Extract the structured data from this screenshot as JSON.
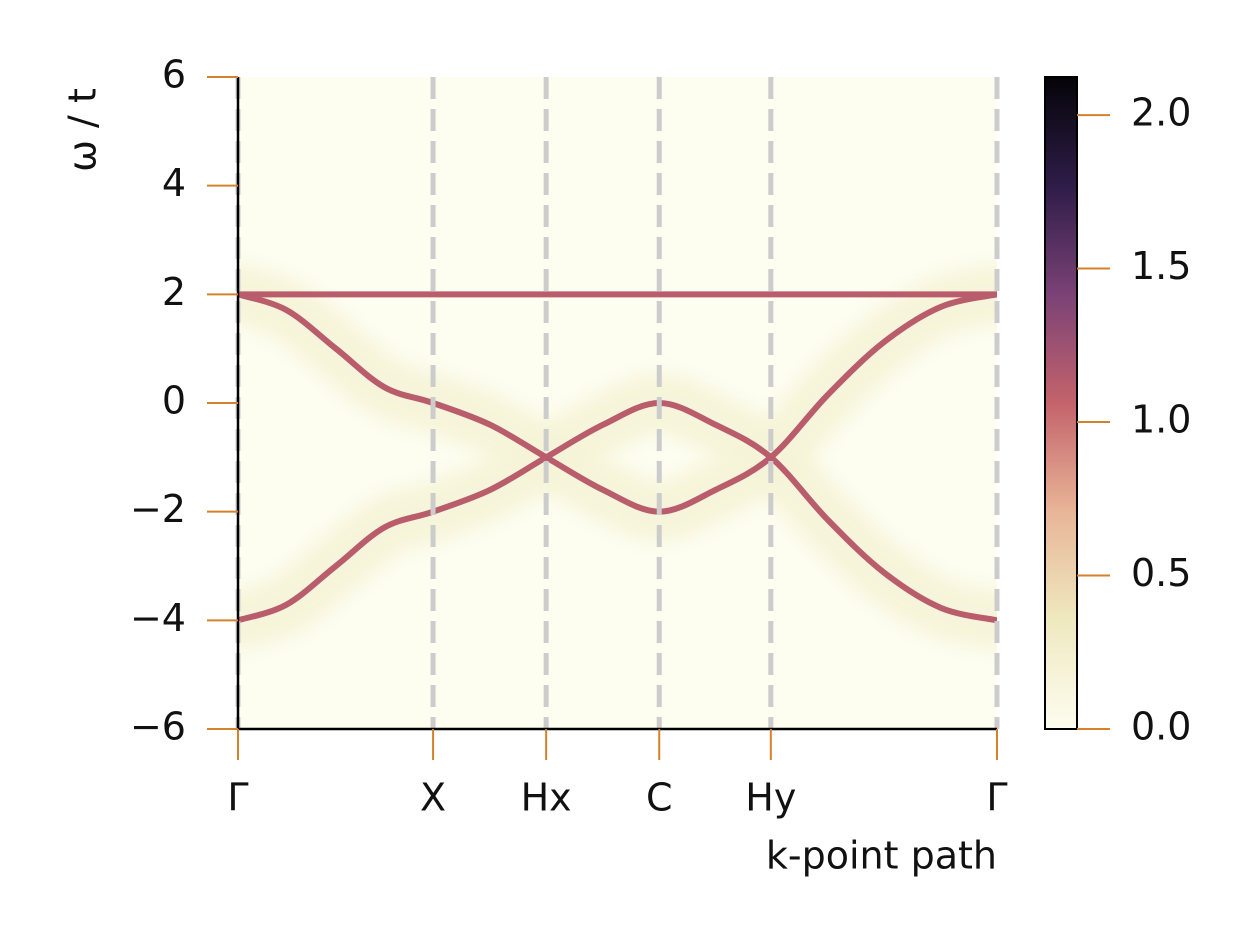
{
  "chart_data": {
    "type": "spectral",
    "ylabel": "ω / t",
    "xlabel": "k-point path",
    "xlim": [
      0,
      1
    ],
    "xticks": [
      {
        "value": 0,
        "label": "Γ"
      },
      {
        "value": 0.257,
        "label": "X"
      },
      {
        "value": 0.406,
        "label": "Hx"
      },
      {
        "value": 0.555,
        "label": "C"
      },
      {
        "value": 0.702,
        "label": "Hy"
      },
      {
        "value": 1,
        "label": "Γ"
      }
    ],
    "ylim": [
      -6,
      6
    ],
    "yticks": [
      {
        "value": -6,
        "label": "−6"
      },
      {
        "value": -4,
        "label": "−4"
      },
      {
        "value": -2,
        "label": "−2"
      },
      0,
      2,
      4,
      6
    ],
    "series": [
      {
        "x": [
          0,
          1
        ],
        "values": [
          2,
          2
        ],
        "color": "#b95c6c"
      },
      {
        "x": [
          0,
          0.064,
          0.129,
          0.193,
          0.257,
          0.332,
          0.406,
          0.481,
          0.555,
          0.629,
          0.702,
          0.777,
          0.851,
          0.926,
          1
        ],
        "values": [
          2,
          1.71,
          1,
          0.29,
          0,
          -0.4,
          -1,
          -1.6,
          -2,
          -1.6,
          -1,
          0.15,
          1.12,
          1.77,
          2
        ],
        "color": "#b95c6c"
      },
      {
        "x": [
          0,
          0.064,
          0.129,
          0.193,
          0.257,
          0.332,
          0.406,
          0.481,
          0.555,
          0.629,
          0.702,
          0.777,
          0.851,
          0.926,
          1
        ],
        "values": [
          -4,
          -3.71,
          -3,
          -2.29,
          -2,
          -1.6,
          -1,
          -0.4,
          0,
          -0.4,
          -1,
          -2.15,
          -3.12,
          -3.77,
          -4
        ],
        "color": "#b95c6c"
      }
    ],
    "clim": [
      0,
      2.124
    ],
    "cticks": [
      {
        "value": 0,
        "label": "0.0"
      },
      0.5,
      {
        "value": 1,
        "label": "1.0"
      },
      1.5,
      {
        "value": 2,
        "label": "2.0"
      }
    ],
    "colormap": [
      "#fdfdf0",
      "#efe9c0",
      "#e8b597",
      "#c4636b",
      "#7a4276",
      "#2e1c48",
      "#050408"
    ],
    "glow_color": "#f6f4d8",
    "tick_color": "#d4822a",
    "grid_color": "#cccccc"
  }
}
